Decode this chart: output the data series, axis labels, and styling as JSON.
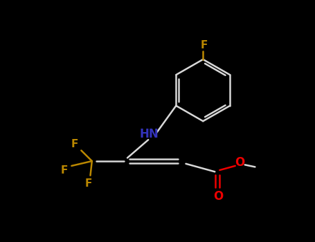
{
  "background_color": "#000000",
  "bond_color": "#d8d8d8",
  "atom_colors": {
    "N": "#3333bb",
    "O": "#ee0000",
    "F": "#bb8800",
    "C": "#d8d8d8"
  },
  "figsize": [
    4.55,
    3.5
  ],
  "dpi": 100,
  "lw": 1.8,
  "fontsize": 11
}
